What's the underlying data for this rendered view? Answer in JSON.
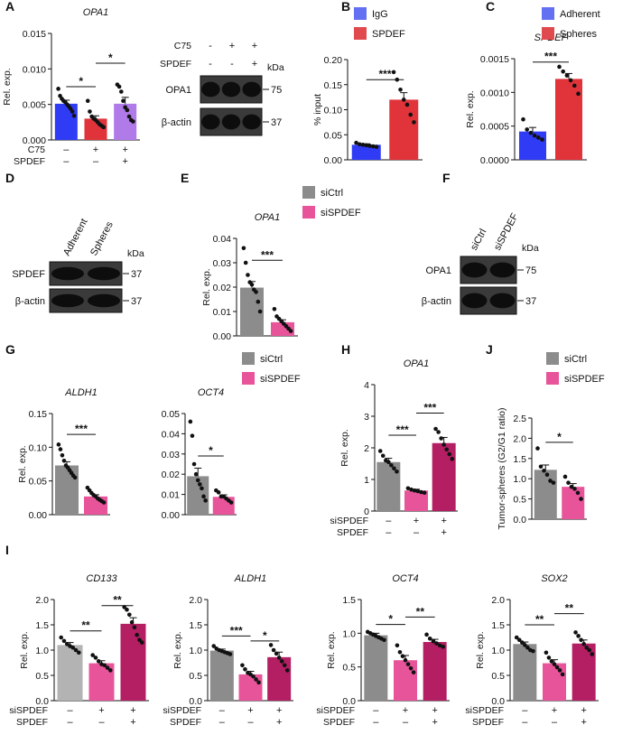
{
  "colors": {
    "blue": "#2f3bf5",
    "red": "#e0333a",
    "purple": "#b07ae8",
    "gray": "#8c8c8c",
    "pink": "#e8549a",
    "magenta": "#b41e63",
    "lightgray": "#b3b3b3",
    "legend_blue": "#6470f2",
    "legend_red": "#e04a4f"
  },
  "panels": [
    {
      "key": "A",
      "letter": "A"
    },
    {
      "key": "B",
      "letter": "B"
    },
    {
      "key": "C",
      "letter": "C"
    },
    {
      "key": "D",
      "letter": "D"
    },
    {
      "key": "E",
      "letter": "E"
    },
    {
      "key": "F",
      "letter": "F"
    },
    {
      "key": "G",
      "letter": "G"
    },
    {
      "key": "H",
      "letter": "H"
    },
    {
      "key": "J",
      "letter": "J"
    },
    {
      "key": "I",
      "letter": "I"
    }
  ],
  "blots": [
    {
      "key": "A_blot",
      "col_labels": [],
      "cond_rows": [
        {
          "label": "C75",
          "signs": [
            "-",
            "+",
            "+"
          ]
        },
        {
          "label": "SPDEF",
          "signs": [
            "-",
            "-",
            "+"
          ]
        }
      ],
      "kda_label": "kDa",
      "bands": [
        {
          "label": "OPA1",
          "marker": "75"
        },
        {
          "label": "β-actin",
          "marker": "37"
        }
      ]
    },
    {
      "key": "D_blot",
      "col_labels": [
        "Adherent",
        "Spheres"
      ],
      "cond_rows": [],
      "kda_label": "kDa",
      "bands": [
        {
          "label": "SPDEF",
          "marker": "37"
        },
        {
          "label": "β-actin",
          "marker": "37"
        }
      ]
    },
    {
      "key": "F_blot",
      "col_labels": [
        "siCtrl",
        "siSPDEF"
      ],
      "cond_rows": [],
      "kda_label": "kDa",
      "bands": [
        {
          "label": "OPA1",
          "marker": "75"
        },
        {
          "label": "β-actin",
          "marker": "37"
        }
      ]
    }
  ],
  "legends": [
    {
      "key": "B_leg",
      "items": [
        {
          "label": "IgG",
          "color": "legend_blue"
        },
        {
          "label": "SPDEF",
          "color": "legend_red"
        }
      ]
    },
    {
      "key": "C_leg",
      "items": [
        {
          "label": "Adherent",
          "color": "legend_blue"
        },
        {
          "label": "Spheres",
          "color": "legend_red"
        }
      ]
    },
    {
      "key": "E_leg",
      "items": [
        {
          "label": "siCtrl",
          "color": "gray"
        },
        {
          "label": "siSPDEF",
          "color": "pink"
        }
      ]
    },
    {
      "key": "G_leg",
      "items": [
        {
          "label": "siCtrl",
          "color": "gray"
        },
        {
          "label": "siSPDEF",
          "color": "pink"
        }
      ]
    },
    {
      "key": "J_leg",
      "items": [
        {
          "label": "siCtrl",
          "color": "gray"
        },
        {
          "label": "siSPDEF",
          "color": "pink"
        }
      ]
    }
  ],
  "chart_data": [
    {
      "key": "A",
      "type": "bar",
      "title": "OPA1",
      "ylabel": "Rel. exp.",
      "ylim": [
        0,
        0.015
      ],
      "ticks": [
        "0.000",
        "0.005",
        "0.010",
        "0.015"
      ],
      "values": [
        0.0051,
        0.003,
        0.0051
      ],
      "errors": [
        0.0005,
        0.0004,
        0.0009
      ],
      "colors": [
        "blue",
        "red",
        "purple"
      ],
      "cond_rows": [
        {
          "label": "C75",
          "signs": [
            "–",
            "+",
            "+"
          ]
        },
        {
          "label": "SPDEF",
          "signs": [
            "–",
            "–",
            "+"
          ]
        }
      ],
      "points": [
        [
          0.0072,
          0.0062,
          0.0058,
          0.0055,
          0.0053,
          0.005,
          0.0047,
          0.0044,
          0.004,
          0.0034
        ],
        [
          0.0055,
          0.004,
          0.0033,
          0.003,
          0.0028,
          0.0025,
          0.0022,
          0.002,
          0.0018
        ],
        [
          0.0078,
          0.0075,
          0.0068,
          0.0055,
          0.0046,
          0.0042,
          0.0033,
          0.0028,
          0.0026
        ]
      ],
      "sig": [
        {
          "from": 0,
          "to": 1,
          "label": "*",
          "y": 0.0075
        },
        {
          "from": 1,
          "to": 2,
          "label": "*",
          "y": 0.0108
        }
      ]
    },
    {
      "key": "B",
      "type": "bar",
      "title": "",
      "ylabel": "% input",
      "ylim": [
        0,
        0.2
      ],
      "ticks": [
        "0.00",
        "0.05",
        "0.10",
        "0.15",
        "0.20"
      ],
      "values": [
        0.03,
        0.12
      ],
      "errors": [
        0.002,
        0.014
      ],
      "colors": [
        "blue",
        "red"
      ],
      "cond_rows": [],
      "points": [
        [
          0.034,
          0.031,
          0.03,
          0.029,
          0.028,
          0.027,
          0.026
        ],
        [
          0.175,
          0.16,
          0.14,
          0.12,
          0.11,
          0.09,
          0.075
        ]
      ],
      "sig": [
        {
          "from": 0,
          "to": 1,
          "label": "***",
          "y": 0.16
        }
      ]
    },
    {
      "key": "C",
      "type": "bar",
      "title": "SPDEF",
      "ylabel": "Rel. exp.",
      "ylim": [
        0,
        0.0015
      ],
      "ticks": [
        "0.0000",
        "0.0005",
        "0.0010",
        "0.0015"
      ],
      "values": [
        0.00042,
        0.0012
      ],
      "errors": [
        6e-05,
        8e-05
      ],
      "colors": [
        "blue",
        "red"
      ],
      "cond_rows": [],
      "points": [
        [
          0.0006,
          0.00045,
          0.0004,
          0.00036,
          0.00033,
          0.0003
        ],
        [
          0.00138,
          0.00131,
          0.00125,
          0.00118,
          0.0011,
          0.00098
        ]
      ],
      "sig": [
        {
          "from": 0,
          "to": 1,
          "label": "***",
          "y": 0.00145
        }
      ]
    },
    {
      "key": "E",
      "type": "bar",
      "title": "OPA1",
      "ylabel": "Rel. exp.",
      "ylim": [
        0,
        0.04
      ],
      "ticks": [
        "0.00",
        "0.01",
        "0.02",
        "0.03",
        "0.04"
      ],
      "values": [
        0.0198,
        0.0056
      ],
      "errors": [
        0.0025,
        0.001
      ],
      "colors": [
        "gray",
        "pink"
      ],
      "cond_rows": [],
      "points": [
        [
          0.036,
          0.03,
          0.025,
          0.022,
          0.021,
          0.019,
          0.018,
          0.014,
          0.01
        ],
        [
          0.011,
          0.008,
          0.007,
          0.006,
          0.005,
          0.004,
          0.003,
          0.002
        ]
      ],
      "sig": [
        {
          "from": 0,
          "to": 1,
          "label": "***",
          "y": 0.031
        }
      ]
    },
    {
      "key": "G1",
      "type": "bar",
      "title": "ALDH1",
      "ylabel": "Rel. exp.",
      "ylim": [
        0,
        0.15
      ],
      "ticks": [
        "0.00",
        "0.05",
        "0.10",
        "0.15"
      ],
      "values": [
        0.073,
        0.027
      ],
      "errors": [
        0.0055,
        0.0025
      ],
      "colors": [
        "gray",
        "pink"
      ],
      "cond_rows": [],
      "points": [
        [
          0.104,
          0.097,
          0.088,
          0.08,
          0.073,
          0.07,
          0.066,
          0.062,
          0.058,
          0.055
        ],
        [
          0.04,
          0.036,
          0.032,
          0.029,
          0.027,
          0.024,
          0.022,
          0.02,
          0.018
        ]
      ],
      "sig": [
        {
          "from": 0,
          "to": 1,
          "label": "***",
          "y": 0.119
        }
      ]
    },
    {
      "key": "G2",
      "type": "bar",
      "title": "OCT4",
      "ylabel": "",
      "ylim": [
        0,
        0.05
      ],
      "ticks": [
        "0.00",
        "0.01",
        "0.02",
        "0.03",
        "0.04",
        "0.05"
      ],
      "values": [
        0.019,
        0.0088
      ],
      "errors": [
        0.004,
        0.001
      ],
      "colors": [
        "gray",
        "pink"
      ],
      "cond_rows": [],
      "points": [
        [
          0.046,
          0.039,
          0.025,
          0.02,
          0.017,
          0.015,
          0.013,
          0.009,
          0.007
        ],
        [
          0.012,
          0.011,
          0.009,
          0.009,
          0.008,
          0.007,
          0.006
        ]
      ],
      "sig": [
        {
          "from": 0,
          "to": 1,
          "label": "*",
          "y": 0.029
        }
      ]
    },
    {
      "key": "H",
      "type": "bar",
      "title": "OPA1",
      "ylabel": "Rel. exp.",
      "ylim": [
        0,
        4
      ],
      "ticks": [
        "0",
        "1",
        "2",
        "3",
        "4"
      ],
      "values": [
        1.55,
        0.65,
        2.15
      ],
      "errors": [
        0.12,
        0.04,
        0.18
      ],
      "colors": [
        "gray",
        "pink",
        "magenta"
      ],
      "cond_rows": [
        {
          "label": "siSPDEF",
          "signs": [
            "–",
            "+",
            "+"
          ]
        },
        {
          "label": "SPDEF",
          "signs": [
            "–",
            "–",
            "+"
          ]
        }
      ],
      "points": [
        [
          1.9,
          1.75,
          1.6,
          1.55,
          1.45,
          1.35,
          1.25
        ],
        [
          0.72,
          0.68,
          0.65,
          0.63,
          0.6,
          0.58
        ],
        [
          2.6,
          2.5,
          2.3,
          2.1,
          1.95,
          1.8,
          1.65
        ]
      ],
      "sig": [
        {
          "from": 0,
          "to": 1,
          "label": "***",
          "y": 2.4
        },
        {
          "from": 1,
          "to": 2,
          "label": "***",
          "y": 3.1
        }
      ]
    },
    {
      "key": "J",
      "type": "bar",
      "title": "",
      "ylabel": "Tumor-spheres (G2/G1 ratio)",
      "ylim": [
        0,
        2.5
      ],
      "ticks": [
        "0.0",
        "0.5",
        "1.0",
        "1.5",
        "2.0",
        "2.5"
      ],
      "values": [
        1.22,
        0.8
      ],
      "errors": [
        0.12,
        0.08
      ],
      "colors": [
        "gray",
        "pink"
      ],
      "cond_rows": [],
      "points": [
        [
          1.75,
          1.3,
          1.2,
          1.1,
          0.95,
          0.9
        ],
        [
          1.05,
          0.9,
          0.8,
          0.75,
          0.65,
          0.5
        ]
      ],
      "sig": [
        {
          "from": 0,
          "to": 1,
          "label": "*",
          "y": 1.9
        }
      ]
    },
    {
      "key": "I1",
      "type": "bar",
      "title": "CD133",
      "ylabel": "Rel. exp.",
      "ylim": [
        0,
        2.0
      ],
      "ticks": [
        "0.0",
        "0.5",
        "1.0",
        "1.5",
        "2.0"
      ],
      "values": [
        1.1,
        0.74,
        1.52
      ],
      "errors": [
        0.05,
        0.05,
        0.12
      ],
      "colors": [
        "lightgray",
        "pink",
        "magenta"
      ],
      "cond_rows": [
        {
          "label": "siSPDEF",
          "signs": [
            "–",
            "+",
            "+"
          ]
        },
        {
          "label": "SPDEF",
          "signs": [
            "–",
            "–",
            "+"
          ]
        }
      ],
      "points": [
        [
          1.25,
          1.18,
          1.12,
          1.08,
          1.05,
          1.0,
          0.95
        ],
        [
          0.9,
          0.85,
          0.78,
          0.72,
          0.7,
          0.65,
          0.6
        ],
        [
          1.85,
          1.8,
          1.7,
          1.55,
          1.45,
          1.3,
          1.2,
          1.15
        ]
      ],
      "sig": [
        {
          "from": 0,
          "to": 1,
          "label": "**",
          "y": 1.38
        },
        {
          "from": 1,
          "to": 2,
          "label": "**",
          "y": 1.88
        }
      ]
    },
    {
      "key": "I2",
      "type": "bar",
      "title": "ALDH1",
      "ylabel": "Rel. exp.",
      "ylim": [
        0,
        2.0
      ],
      "ticks": [
        "0.0",
        "0.5",
        "1.0",
        "1.5",
        "2.0"
      ],
      "values": [
        0.99,
        0.52,
        0.86
      ],
      "errors": [
        0.03,
        0.06,
        0.1
      ],
      "colors": [
        "gray",
        "pink",
        "magenta"
      ],
      "cond_rows": [
        {
          "label": "siSPDEF",
          "signs": [
            "–",
            "+",
            "+"
          ]
        },
        {
          "label": "SPDEF",
          "signs": [
            "–",
            "–",
            "+"
          ]
        }
      ],
      "points": [
        [
          1.08,
          1.03,
          1.0,
          0.98,
          0.96,
          0.94,
          0.92
        ],
        [
          0.7,
          0.62,
          0.55,
          0.52,
          0.48,
          0.42,
          0.36
        ],
        [
          1.1,
          1.0,
          0.93,
          0.85,
          0.78,
          0.7,
          0.6
        ]
      ],
      "sig": [
        {
          "from": 0,
          "to": 1,
          "label": "***",
          "y": 1.28
        },
        {
          "from": 1,
          "to": 2,
          "label": "*",
          "y": 1.18
        }
      ]
    },
    {
      "key": "I3",
      "type": "bar",
      "title": "OCT4",
      "ylabel": "Rel. exp.",
      "ylim": [
        0,
        1.5
      ],
      "ticks": [
        "0.0",
        "0.5",
        "1.0",
        "1.5"
      ],
      "values": [
        0.97,
        0.6,
        0.87
      ],
      "errors": [
        0.03,
        0.07,
        0.04
      ],
      "colors": [
        "gray",
        "pink",
        "magenta"
      ],
      "cond_rows": [
        {
          "label": "siSPDEF",
          "signs": [
            "–",
            "+",
            "+"
          ]
        },
        {
          "label": "SPDEF",
          "signs": [
            "–",
            "–",
            "+"
          ]
        }
      ],
      "points": [
        [
          1.02,
          1.0,
          0.98,
          0.96,
          0.94,
          0.92,
          0.9
        ],
        [
          0.82,
          0.72,
          0.66,
          0.6,
          0.54,
          0.48,
          0.42
        ],
        [
          0.98,
          0.92,
          0.88,
          0.85,
          0.82,
          0.8
        ]
      ],
      "sig": [
        {
          "from": 0,
          "to": 1,
          "label": "*",
          "y": 1.13
        },
        {
          "from": 1,
          "to": 2,
          "label": "**",
          "y": 1.24
        }
      ]
    },
    {
      "key": "I4",
      "type": "bar",
      "title": "SOX2",
      "ylabel": "Rel. exp.",
      "ylim": [
        0,
        2.0
      ],
      "ticks": [
        "0.0",
        "0.5",
        "1.0",
        "1.5",
        "2.0"
      ],
      "values": [
        1.12,
        0.74,
        1.13
      ],
      "errors": [
        0.04,
        0.07,
        0.07
      ],
      "colors": [
        "gray",
        "pink",
        "magenta"
      ],
      "cond_rows": [
        {
          "label": "siSPDEF",
          "signs": [
            "–",
            "+",
            "+"
          ]
        },
        {
          "label": "SPDEF",
          "signs": [
            "–",
            "–",
            "+"
          ]
        }
      ],
      "points": [
        [
          1.25,
          1.2,
          1.15,
          1.1,
          1.05,
          1.0,
          0.98
        ],
        [
          0.95,
          0.85,
          0.78,
          0.72,
          0.66,
          0.6,
          0.52
        ],
        [
          1.35,
          1.28,
          1.2,
          1.12,
          1.05,
          1.0,
          0.92
        ]
      ],
      "sig": [
        {
          "from": 0,
          "to": 1,
          "label": "**",
          "y": 1.5
        },
        {
          "from": 1,
          "to": 2,
          "label": "**",
          "y": 1.72
        }
      ]
    }
  ]
}
